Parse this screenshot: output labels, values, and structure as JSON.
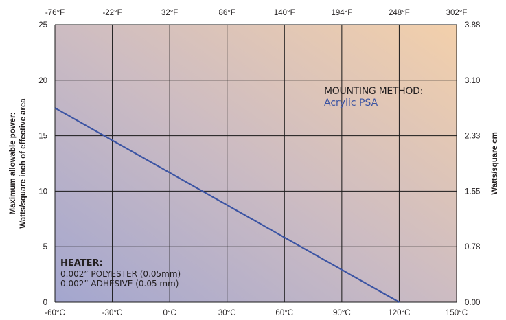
{
  "chart_data": {
    "type": "line",
    "title": "",
    "x_bottom": {
      "ticks": [
        "-60°C",
        "-30°C",
        "0°C",
        "30°C",
        "60°C",
        "90°C",
        "120°C",
        "150°C"
      ],
      "range": [
        -60,
        150
      ]
    },
    "x_top": {
      "ticks": [
        "-76°F",
        "-22°F",
        "32°F",
        "86°F",
        "140°F",
        "194°F",
        "248°F",
        "302°F"
      ]
    },
    "y_left": {
      "label_lines": [
        "Maximum allowable power:",
        "Watts/square inch of effective area"
      ],
      "ticks": [
        "0",
        "5",
        "10",
        "15",
        "20",
        "25"
      ],
      "range": [
        0,
        25
      ]
    },
    "y_right": {
      "label": "Watts/square cm",
      "ticks": [
        "0.00",
        "0.78",
        "1.55",
        "2.33",
        "3.10",
        "3.88"
      ]
    },
    "grid": true,
    "series": [
      {
        "x": [
          -60,
          120
        ],
        "y": [
          17.5,
          0
        ]
      }
    ],
    "annotations": {
      "mounting": {
        "title": "MOUNTING METHOD:",
        "value": "Acrylic PSA"
      },
      "heater": {
        "title": "HEATER:",
        "lines": [
          "0.002” POLYESTER (0.05mm)",
          "0.002” ADHESIVE (0.05 mm)"
        ]
      }
    },
    "colors": {
      "line": "#3b54a3",
      "gradient_left": "#a6a9cf",
      "gradient_right": "#f1ceab",
      "grid": "#1a1a1a"
    }
  }
}
